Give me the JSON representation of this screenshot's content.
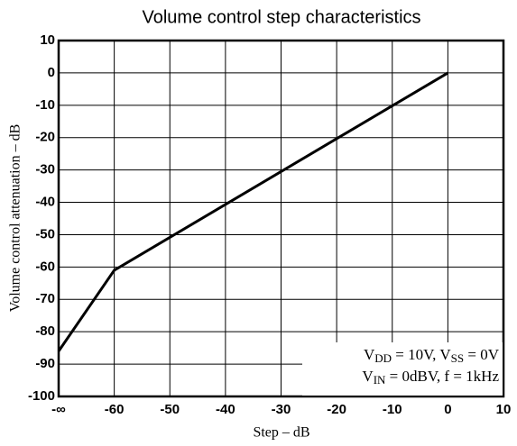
{
  "chart_data": {
    "type": "line",
    "title": "Volume control step characteristics",
    "x_label": "Step – dB",
    "y_label": "Volume control attenuation – dB",
    "x": [
      -70,
      -60,
      0
    ],
    "series": [
      {
        "color": "#000000",
        "values": [
          -86,
          -61,
          0
        ]
      }
    ],
    "xlim": [
      -70,
      10
    ],
    "xticks": [
      {
        "value": -70,
        "label": "-∞"
      },
      -60,
      -50,
      -40,
      -30,
      -20,
      -10,
      0,
      10
    ],
    "ylim": [
      -100,
      10
    ],
    "yticks": [
      -100,
      -90,
      -80,
      -70,
      -60,
      -50,
      -40,
      -30,
      -20,
      -10,
      0,
      10
    ],
    "grid": true,
    "annotation": [
      [
        "V",
        "DD",
        " = 10V, V",
        "SS",
        " = 0V"
      ],
      [
        "V",
        "IN",
        " = 0dBV, f = 1kHz"
      ]
    ]
  }
}
